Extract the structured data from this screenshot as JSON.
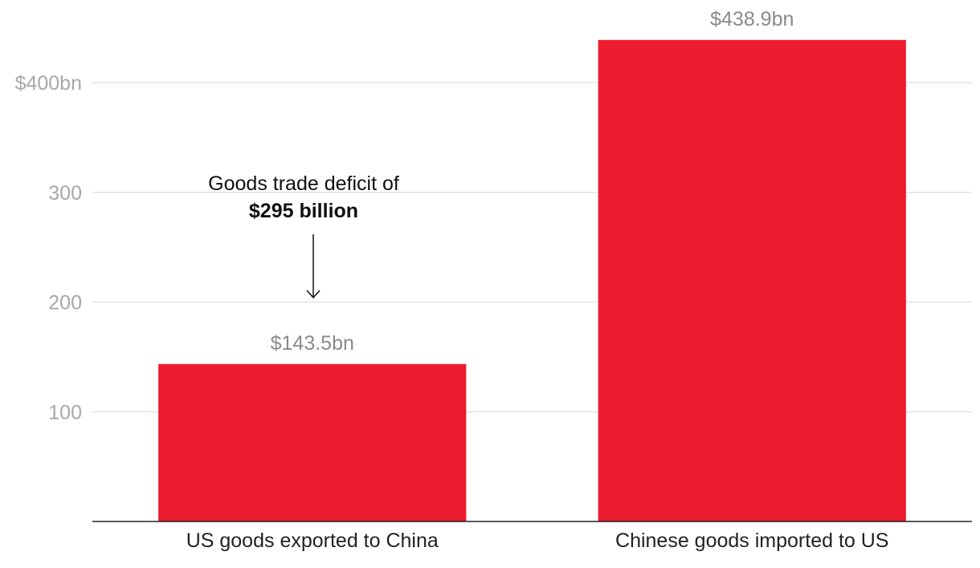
{
  "chart_data": {
    "type": "bar",
    "categories": [
      "US goods exported to China",
      "Chinese goods imported to US"
    ],
    "values": [
      143.5,
      438.9
    ],
    "value_labels": [
      "$143.5bn",
      "$438.9bn"
    ],
    "bar_color": "#ec1b2e",
    "ylim": [
      0,
      400
    ],
    "yticks": [
      {
        "value": 100,
        "label": "100"
      },
      {
        "value": 200,
        "label": "200"
      },
      {
        "value": 300,
        "label": "300"
      },
      {
        "value": 400,
        "label": "$400bn"
      }
    ],
    "grid": true,
    "title": "",
    "xlabel": "",
    "ylabel": "",
    "annotation": {
      "line1": "Goods trade deficit of",
      "line2": "$295 billion"
    }
  }
}
